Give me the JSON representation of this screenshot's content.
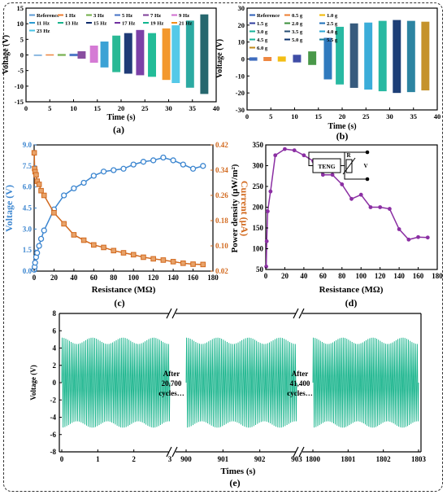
{
  "chart_data": [
    {
      "panel": "(a)",
      "type": "bar",
      "xlabel": "Time (s)",
      "ylabel": "Voltage (V)",
      "xlim": [
        0,
        40
      ],
      "ylim": [
        -15,
        15
      ],
      "xticks": [
        0,
        5,
        10,
        15,
        20,
        25,
        30,
        35,
        40
      ],
      "yticks": [
        -15,
        -10,
        -5,
        0,
        5,
        10,
        15
      ],
      "legend_position": "top",
      "series": [
        {
          "name": "Reference",
          "x": 2.5,
          "ymin": -0.1,
          "ymax": 0.1,
          "color": "#5b9bd5"
        },
        {
          "name": "1 Hz",
          "x": 5.0,
          "ymin": -0.2,
          "ymax": 0.2,
          "color": "#ed7d31"
        },
        {
          "name": "3 Hz",
          "x": 7.5,
          "ymin": -0.3,
          "ymax": 0.3,
          "color": "#70ad47"
        },
        {
          "name": "5 Hz",
          "x": 10.0,
          "ymin": -0.4,
          "ymax": 0.4,
          "color": "#4472c4"
        },
        {
          "name": "7 Hz",
          "x": 11.7,
          "ymin": -1.2,
          "ymax": 1.2,
          "color": "#7f3f98"
        },
        {
          "name": "9 Hz",
          "x": 14.3,
          "ymin": -2.5,
          "ymax": 3.0,
          "color": "#d16fd1"
        },
        {
          "name": "11 Hz",
          "x": 16.5,
          "ymin": -4.0,
          "ymax": 4.3,
          "color": "#2b9ad1"
        },
        {
          "name": "13 Hz",
          "x": 19.0,
          "ymin": -5.5,
          "ymax": 6.2,
          "color": "#18b38c"
        },
        {
          "name": "15 Hz",
          "x": 21.5,
          "ymin": -6.0,
          "ymax": 7.0,
          "color": "#0c2a6b"
        },
        {
          "name": "17 Hz",
          "x": 24.0,
          "ymin": -6.5,
          "ymax": 8.0,
          "color": "#7030a0"
        },
        {
          "name": "19 Hz",
          "x": 26.5,
          "ymin": -7.0,
          "ymax": 7.0,
          "color": "#0fb68f"
        },
        {
          "name": "21 Hz",
          "x": 29.5,
          "ymin": -8.0,
          "ymax": 8.5,
          "color": "#f28f1c"
        },
        {
          "name": "23 Hz",
          "x": 31.5,
          "ymin": -9.0,
          "ymax": 9.5,
          "color": "#47c4e6"
        },
        {
          "name": "",
          "x": 34.5,
          "ymin": -10.5,
          "ymax": 11.0,
          "color": "#1aa39a"
        },
        {
          "name": "",
          "x": 37.5,
          "ymin": -12.5,
          "ymax": 13.0,
          "color": "#135a62"
        }
      ]
    },
    {
      "panel": "(b)",
      "type": "bar",
      "xlabel": "Time (s)",
      "ylabel": "Voltage (V)",
      "xlim": [
        0,
        40
      ],
      "ylim": [
        -30,
        30
      ],
      "xticks": [
        0,
        5,
        10,
        15,
        20,
        25,
        30,
        35,
        40
      ],
      "yticks": [
        -30,
        -20,
        -10,
        0,
        10,
        20,
        30
      ],
      "legend_position": "top-left",
      "series": [
        {
          "name": "Reference",
          "x": 1.3,
          "ymin": -1.0,
          "ymax": 1.0,
          "color": "#2e5fb8"
        },
        {
          "name": "0.5 g",
          "x": 4.3,
          "ymin": -1.2,
          "ymax": 1.2,
          "color": "#ed7d31"
        },
        {
          "name": "1.0 g",
          "x": 7.3,
          "ymin": -1.5,
          "ymax": 1.5,
          "color": "#f2b800"
        },
        {
          "name": "1.5 g",
          "x": 10.5,
          "ymin": -2.0,
          "ymax": 2.5,
          "color": "#2f3e9e"
        },
        {
          "name": "2.0 g",
          "x": 13.7,
          "ymin": -3.5,
          "ymax": 4.5,
          "color": "#3a8f3a"
        },
        {
          "name": "2.5 g",
          "x": 17.0,
          "ymin": -12.0,
          "ymax": 12.5,
          "color": "#1e6fb8"
        },
        {
          "name": "3.0 g",
          "x": 19.5,
          "ymin": -15.0,
          "ymax": 19.0,
          "color": "#16b39a"
        },
        {
          "name": "3.5 g",
          "x": 22.5,
          "ymin": -17.0,
          "ymax": 21.0,
          "color": "#264d73"
        },
        {
          "name": "4.0 g",
          "x": 25.5,
          "ymin": -18.0,
          "ymax": 21.5,
          "color": "#2aa6d6"
        },
        {
          "name": "4.5 g",
          "x": 28.5,
          "ymin": -19.0,
          "ymax": 22.5,
          "color": "#16b39a"
        },
        {
          "name": "5.0 g",
          "x": 31.5,
          "ymin": -20.0,
          "ymax": 23.0,
          "color": "#0a2f6b"
        },
        {
          "name": "5.5 g",
          "x": 34.5,
          "ymin": -19.5,
          "ymax": 22.5,
          "color": "#1a7a9a"
        },
        {
          "name": "6.0 g",
          "x": 37.5,
          "ymin": -18.5,
          "ymax": 22.0,
          "color": "#c08a1a"
        }
      ]
    },
    {
      "panel": "(c)",
      "type": "line",
      "xlabel": "Resistance (MΩ)",
      "ylabel_left": "Voltage (V)",
      "ylabel_right": "Current (μA)",
      "xlim": [
        0,
        180
      ],
      "ylim_left": [
        0,
        9.0
      ],
      "ylim_right": [
        0.02,
        0.42
      ],
      "xticks": [
        0,
        20,
        40,
        60,
        80,
        100,
        120,
        140,
        160,
        180
      ],
      "yticks_left": [
        "0.0",
        "1.5",
        "3.0",
        "4.5",
        "6.0",
        "7.5",
        "9.0"
      ],
      "yticks_right": [
        "0.02",
        "0.10",
        "0.18",
        "0.26",
        "0.34",
        "0.42"
      ],
      "x": [
        0.1,
        0.5,
        1,
        2,
        3,
        5,
        7,
        10,
        20,
        30,
        40,
        50,
        60,
        70,
        80,
        90,
        100,
        110,
        120,
        130,
        140,
        150,
        160,
        170
      ],
      "series": [
        {
          "name": "Voltage",
          "axis": "left",
          "color": "#3c86d0",
          "values": [
            0.1,
            0.3,
            0.6,
            1.0,
            1.3,
            1.8,
            2.3,
            2.9,
            4.4,
            5.4,
            5.9,
            6.3,
            6.8,
            7.1,
            7.2,
            7.3,
            7.6,
            7.8,
            7.9,
            8.1,
            7.9,
            7.6,
            7.3,
            7.5
          ]
        },
        {
          "name": "Current",
          "axis": "right",
          "color": "#d2691e",
          "values": [
            0.395,
            0.345,
            0.335,
            0.325,
            0.305,
            0.295,
            0.275,
            0.26,
            0.205,
            0.17,
            0.135,
            0.118,
            0.103,
            0.095,
            0.085,
            0.078,
            0.072,
            0.064,
            0.059,
            0.055,
            0.05,
            0.045,
            0.042,
            0.041
          ]
        }
      ]
    },
    {
      "panel": "(d)",
      "type": "line",
      "xlabel": "Resistance (MΩ)",
      "ylabel": "Power density (μW/m²)",
      "xlim": [
        0,
        180
      ],
      "ylim": [
        50,
        350
      ],
      "xticks": [
        0,
        20,
        40,
        60,
        80,
        100,
        120,
        140,
        160,
        180
      ],
      "yticks": [
        50,
        100,
        150,
        200,
        250,
        300,
        350
      ],
      "x": [
        0.5,
        1,
        2,
        5,
        10,
        20,
        30,
        40,
        50,
        60,
        70,
        80,
        90,
        100,
        110,
        120,
        130,
        140,
        150,
        160,
        170
      ],
      "series": [
        {
          "name": "",
          "color": "#8b2fa3",
          "values": [
            57,
            118,
            190,
            238,
            325,
            340,
            337,
            325,
            311,
            278,
            278,
            255,
            220,
            230,
            200,
            200,
            196,
            147,
            122,
            128,
            127
          ]
        }
      ],
      "inset_labels": {
        "teng": "TENG",
        "r": "R",
        "v": "V"
      }
    },
    {
      "panel": "(e)",
      "type": "line",
      "xlabel": "Times (s)",
      "ylabel": "Voltage (V)",
      "ylim": [
        -8,
        8
      ],
      "yticks": [
        -8,
        -6,
        -4,
        -2,
        0,
        2,
        4,
        6,
        8
      ],
      "segments": [
        {
          "range": [
            0,
            3
          ],
          "ticks": [
            "0",
            "1",
            "2",
            "3"
          ]
        },
        {
          "range": [
            900,
            903
          ],
          "ticks": [
            "900",
            "901",
            "902",
            "903"
          ]
        },
        {
          "range": [
            1800,
            1803
          ],
          "ticks": [
            "1800",
            "1801",
            "1802",
            "1803"
          ]
        }
      ],
      "series": [
        {
          "name": "",
          "color": "#14b38a",
          "amplitude": 5.2,
          "cycles_per_second": 20
        }
      ],
      "annotations": [
        {
          "line1": "After",
          "line2": "20,700",
          "line3": "cycles…"
        },
        {
          "line1": "After",
          "line2": "41,400",
          "line3": "cycles…"
        }
      ]
    }
  ],
  "panel_labels": {
    "a": "(a)",
    "b": "(b)",
    "c": "(c)",
    "d": "(d)",
    "e": "(e)"
  }
}
